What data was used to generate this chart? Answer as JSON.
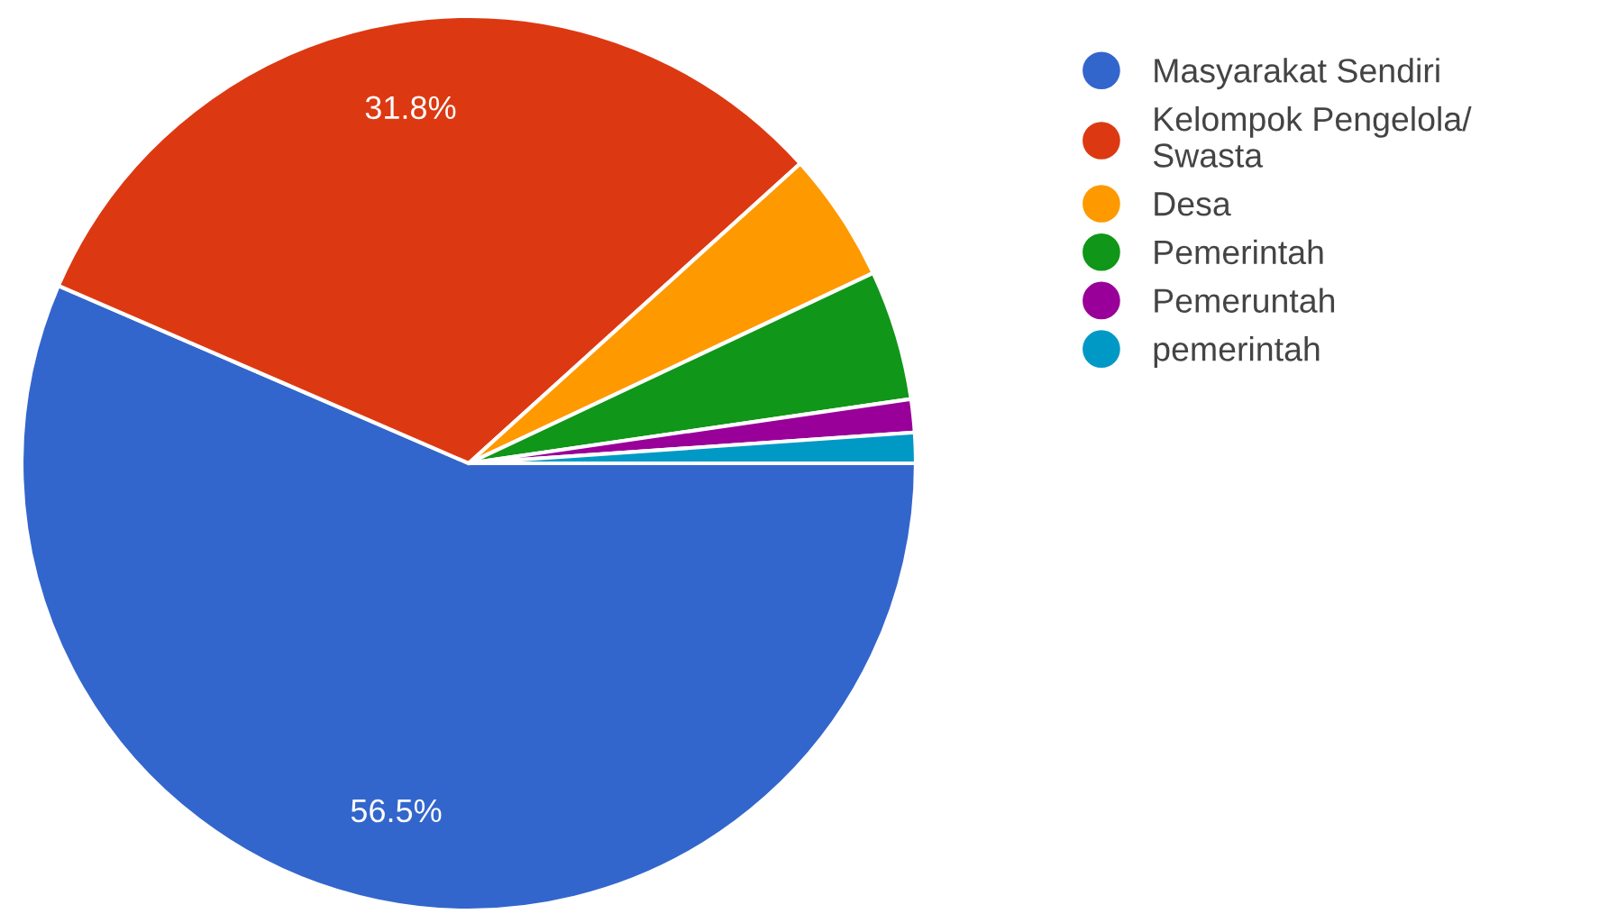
{
  "chart_data": {
    "type": "pie",
    "categories": [
      "Masyarakat Sendiri",
      "Kelompok Pengelola/\nSwasta",
      "Desa",
      "Pemerintah",
      "Pemeruntah",
      "pemerintah"
    ],
    "values": [
      56.5,
      31.8,
      4.7,
      4.7,
      1.2,
      1.1
    ],
    "colors": [
      "#3366cc",
      "#dc3912",
      "#ff9900",
      "#109618",
      "#990099",
      "#0099c6"
    ],
    "value_labels": [
      "56.5%",
      "31.8%",
      null,
      null,
      null,
      null
    ],
    "legend": "right"
  }
}
